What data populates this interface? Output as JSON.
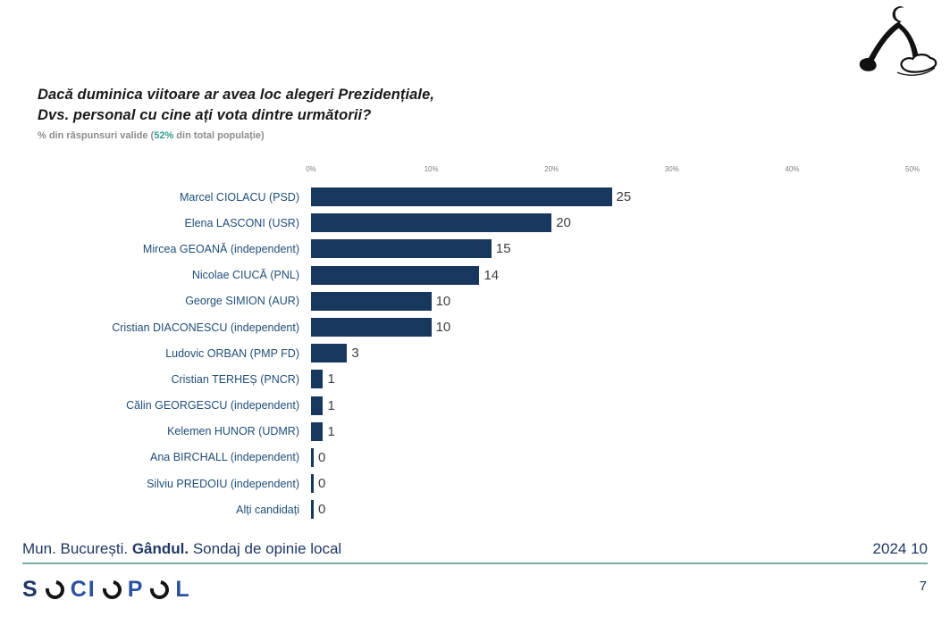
{
  "header": {
    "title_line1": "Dacă duminica viitoare ar avea loc alegeri Prezidențiale,",
    "title_line2": "Dvs. personal cu cine ați vota dintre următorii?",
    "subtitle_prefix": "% din răspunsuri valide (",
    "subtitle_highlight": "52%",
    "subtitle_suffix": " din total populație)"
  },
  "chart_data": {
    "type": "bar",
    "orientation": "horizontal",
    "title": "Dacă duminica viitoare ar avea loc alegeri Prezidențiale, Dvs. personal cu cine ați vota dintre următorii?",
    "subtitle": "% din răspunsuri valide (52% din total populație)",
    "categories": [
      "Marcel CIOLACU (PSD)",
      "Elena LASCONI (USR)",
      "Mircea GEOANĂ (independent)",
      "Nicolae CIUCĂ (PNL)",
      "George SIMION (AUR)",
      "Cristian DIACONESCU (independent)",
      "Ludovic ORBAN (PMP FD)",
      "Cristian TERHEȘ (PNCR)",
      "Călin GEORGESCU (independent)",
      "Kelemen HUNOR (UDMR)",
      "Ana BIRCHALL (independent)",
      "Silviu PREDOIU (independent)",
      "Alți candidați"
    ],
    "values": [
      25,
      20,
      15,
      14,
      10,
      10,
      3,
      1,
      1,
      1,
      0,
      0,
      0
    ],
    "axis_ticks": [
      "0%",
      "10%",
      "20%",
      "30%",
      "40%",
      "50%"
    ],
    "xlim": [
      0,
      50
    ],
    "grid": false,
    "data_labels": true,
    "bar_color": "#17375e",
    "label_color": "#1f4e79",
    "value_color": "#3f3f3f"
  },
  "footer": {
    "left_part1": "Mun. București. ",
    "left_bold": "Gândul.",
    "left_part2": " Sondaj de opinie local",
    "right_date": "2024 10",
    "page_number": "7"
  },
  "brand": {
    "letter_s": "S",
    "letters_ci": "CI",
    "letter_p": "P",
    "letter_l": "L"
  }
}
